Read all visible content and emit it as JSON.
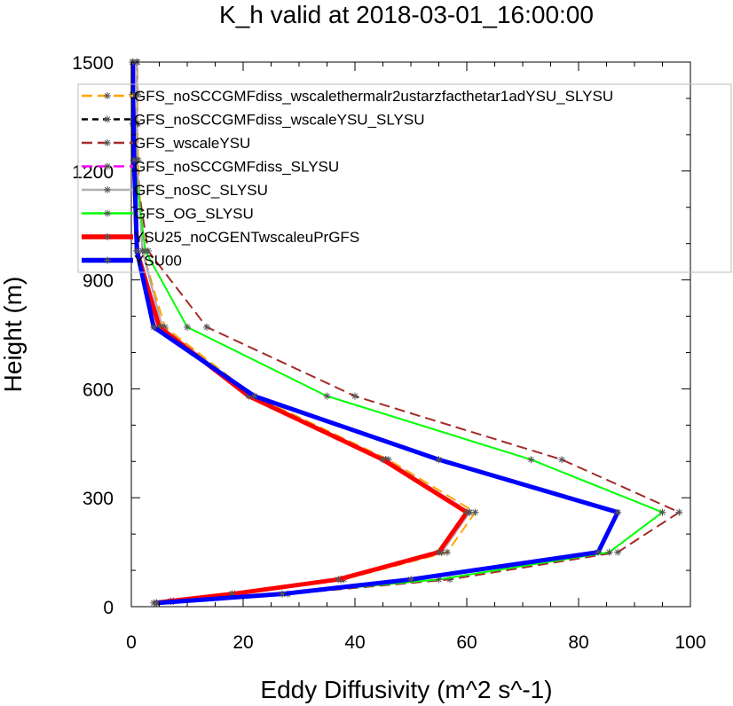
{
  "chart_data": {
    "type": "line",
    "title": "K_h valid at 2018-03-01_16:00:00",
    "xlabel": "Eddy Diffusivity (m^2 s^-1)",
    "ylabel": "Height (m)",
    "xlim": [
      0,
      100
    ],
    "ylim": [
      0,
      1500
    ],
    "xticks": [
      0,
      20,
      40,
      60,
      80,
      100
    ],
    "yticks": [
      0,
      300,
      600,
      900,
      1200,
      1500
    ],
    "grid": false,
    "legend_position": "top-left",
    "series": [
      {
        "name": "GFS_noSCCGMFdiss_wscalethermalr2ustarzfacthetar1adYSU_SLYSU",
        "color": "#ffa500",
        "dash": "long-dash",
        "marker": "asterisk",
        "x": [
          4.5,
          7.5,
          18.5,
          38,
          56.5,
          61.5,
          46,
          22,
          6,
          2,
          1.2,
          1.1,
          1.1,
          1.1
        ],
        "y": [
          10,
          15,
          35,
          75,
          150,
          260,
          405,
          580,
          770,
          980,
          1230,
          1330,
          1410,
          1500
        ]
      },
      {
        "name": "GFS_noSCCGMFdiss_wscaleYSU_SLYSU",
        "color": "#000000",
        "dash": "short-dash",
        "marker": "asterisk",
        "x": [
          4.5,
          7,
          18,
          37.5,
          55.5,
          60.5,
          45.5,
          21.5,
          5.5,
          2,
          1,
          1,
          1,
          1
        ],
        "y": [
          10,
          15,
          35,
          75,
          150,
          260,
          405,
          580,
          770,
          980,
          1230,
          1330,
          1410,
          1500
        ]
      },
      {
        "name": "GFS_wscaleYSU",
        "color": "#a52a2a",
        "dash": "long-dash",
        "marker": "asterisk",
        "x": [
          4.5,
          7.5,
          28,
          57,
          87,
          98,
          77,
          40,
          13.5,
          3,
          0.5,
          0.3,
          0.2,
          0.2
        ],
        "y": [
          10,
          15,
          35,
          75,
          150,
          260,
          405,
          580,
          770,
          980,
          1230,
          1330,
          1410,
          1500
        ]
      },
      {
        "name": "GFS_noSCCGMFdiss_SLYSU",
        "color": "#ff00ff",
        "dash": "long-dash",
        "marker": "asterisk",
        "x": [
          4.5,
          7,
          18,
          37.5,
          55.5,
          60.5,
          45.5,
          21.5,
          5.5,
          2,
          1,
          1,
          1,
          1
        ],
        "y": [
          10,
          15,
          35,
          75,
          150,
          260,
          405,
          580,
          770,
          980,
          1230,
          1330,
          1410,
          1500
        ]
      },
      {
        "name": "GFS_noSC_SLYSU",
        "color": "#b0b0b0",
        "dash": "solid",
        "marker": "asterisk",
        "x": [
          4.5,
          7,
          18,
          37.5,
          55.5,
          60.5,
          45.5,
          21.5,
          5.5,
          2,
          1,
          1,
          1,
          1
        ],
        "y": [
          10,
          15,
          35,
          75,
          150,
          260,
          405,
          580,
          770,
          980,
          1230,
          1330,
          1410,
          1500
        ]
      },
      {
        "name": "GFS_OG_SLYSU",
        "color": "#00ff00",
        "dash": "solid",
        "marker": "asterisk",
        "x": [
          4.5,
          7.5,
          27,
          55,
          85.5,
          95,
          71.5,
          35,
          10,
          2.5,
          0.5,
          0.3,
          0.2,
          0.2
        ],
        "y": [
          10,
          15,
          35,
          75,
          150,
          260,
          405,
          580,
          770,
          980,
          1230,
          1330,
          1410,
          1500
        ]
      },
      {
        "name": "YSU25_noCGENTwscaleuPrGFS",
        "color": "#ff0000",
        "dash": "solid",
        "width": 5,
        "marker": "asterisk",
        "x": [
          4,
          18,
          37,
          55,
          60,
          45,
          21,
          5,
          1,
          0.5,
          0.3,
          0.3
        ],
        "y": [
          10,
          35,
          75,
          150,
          260,
          405,
          580,
          770,
          980,
          1230,
          1410,
          1500
        ]
      },
      {
        "name": "YSU00",
        "color": "#0000ff",
        "dash": "solid",
        "width": 5,
        "marker": "asterisk",
        "x": [
          4.5,
          27,
          50,
          83.5,
          87,
          55,
          22,
          4,
          1,
          0.5,
          0.3,
          0.3
        ],
        "y": [
          10,
          35,
          75,
          150,
          260,
          405,
          580,
          770,
          980,
          1230,
          1410,
          1500
        ]
      }
    ]
  }
}
